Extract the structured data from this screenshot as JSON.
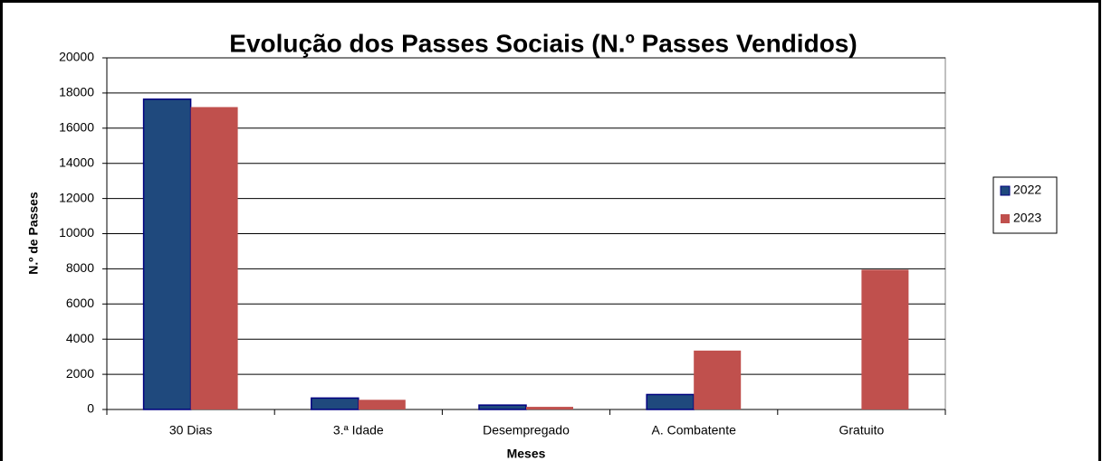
{
  "chart_data": {
    "type": "bar",
    "title": "Evolução dos Passes Sociais (N.º Passes Vendidos)",
    "x_label": "Meses",
    "y_label": "N.º de Passes",
    "categories": [
      "30 Dias",
      "3.ª Idade",
      "Desempregado",
      "A. Combatente",
      "Gratuito"
    ],
    "series": [
      {
        "name": "2022",
        "color": "#1f497d",
        "values": [
          17650,
          650,
          250,
          850,
          0
        ]
      },
      {
        "name": "2023",
        "color": "#c0504d",
        "values": [
          17200,
          550,
          150,
          3350,
          7950
        ]
      }
    ],
    "ylim": [
      0,
      20000
    ],
    "yticks": [
      0,
      2000,
      4000,
      6000,
      8000,
      10000,
      12000,
      14000,
      16000,
      18000,
      20000
    ],
    "grid": true,
    "legend": "right"
  }
}
